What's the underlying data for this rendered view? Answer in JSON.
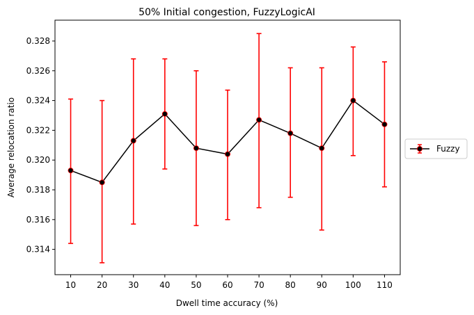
{
  "chart_data": {
    "type": "line",
    "title": "50% Initial congestion, FuzzyLogicAI",
    "xlabel": "Dwell time accuracy (%)",
    "ylabel": "Average relocation ratio",
    "x": [
      10,
      20,
      30,
      40,
      50,
      60,
      70,
      80,
      90,
      100,
      110
    ],
    "xlim": [
      5,
      115
    ],
    "ylim": [
      0.3123,
      0.3294
    ],
    "y_ticks": [
      0.314,
      0.316,
      0.318,
      0.32,
      0.322,
      0.324,
      0.326,
      0.328
    ],
    "y_tick_labels": [
      "0.314",
      "0.316",
      "0.318",
      "0.320",
      "0.322",
      "0.324",
      "0.326",
      "0.328"
    ],
    "x_tick_labels": [
      "10",
      "20",
      "30",
      "40",
      "50",
      "60",
      "70",
      "80",
      "90",
      "100",
      "110"
    ],
    "grid": false,
    "legend_position": "center-right-outside",
    "series": [
      {
        "name": "Fuzzy",
        "line_color": "#000000",
        "marker_color": "#000000",
        "errorbar_color": "#ff0000",
        "values": [
          0.3193,
          0.3185,
          0.3213,
          0.3231,
          0.3208,
          0.3204,
          0.3227,
          0.3218,
          0.3208,
          0.324,
          0.3224
        ],
        "err_lower": [
          0.3144,
          0.3131,
          0.3157,
          0.3194,
          0.3156,
          0.316,
          0.3168,
          0.3175,
          0.3153,
          0.3203,
          0.3182
        ],
        "err_upper": [
          0.3241,
          0.324,
          0.3268,
          0.3268,
          0.326,
          0.3247,
          0.3285,
          0.3262,
          0.3262,
          0.3276,
          0.3266
        ]
      }
    ]
  }
}
